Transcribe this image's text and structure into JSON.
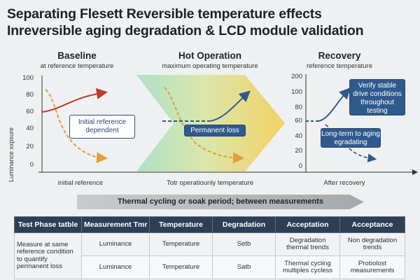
{
  "title": {
    "line1": "Separating Flesett Reversible temperature effects",
    "line2": "Inreversible aging degradation & LCD module validation"
  },
  "phases": [
    {
      "title": "Baseline",
      "subtitle": "at reference temperature",
      "x_caption": "initial reference"
    },
    {
      "title": "Hot Operation",
      "subtitle": "maximum operating temperature",
      "x_caption": "Totr operatiounly temperature"
    },
    {
      "title": "Recovery",
      "subtitle": "reference temperature",
      "x_caption": "After recovery"
    }
  ],
  "axis": {
    "y_label": "Luminance xxpsure",
    "left_ticks": [
      "100",
      "80",
      "60",
      "40",
      "20",
      "0"
    ],
    "right_ticks": [
      "200",
      "100",
      "80",
      "60",
      "40",
      "20",
      "0"
    ]
  },
  "callouts": {
    "initial": "Initial reference dependent",
    "permanent": "Permanent loss",
    "verify": "Verify stable drive conditions throughout testing",
    "longterm": "Long-term to aging egradating"
  },
  "colors": {
    "red": "#c0392b",
    "orange": "#e8a43a",
    "blue": "#2f5a8e",
    "header": "#2d3f55"
  },
  "band": {
    "label": "Thermal cycling or soak period; between measurements"
  },
  "table": {
    "headers": [
      "Test Phase tatble",
      "Measurement Tmr",
      "Temperature",
      "Degradation",
      "Acceptation",
      "Acceptance"
    ],
    "rows": [
      [
        "Measure at same reference condition to quantify permanent loss",
        "Luminance",
        "Temperature",
        "Setb",
        "Degradation thermal trends",
        "Non degradation trends"
      ],
      [
        "",
        "Luminance",
        "Temperature",
        "Satb",
        "Thermal cycling multiples cycless",
        "Probolost measurements"
      ]
    ]
  }
}
